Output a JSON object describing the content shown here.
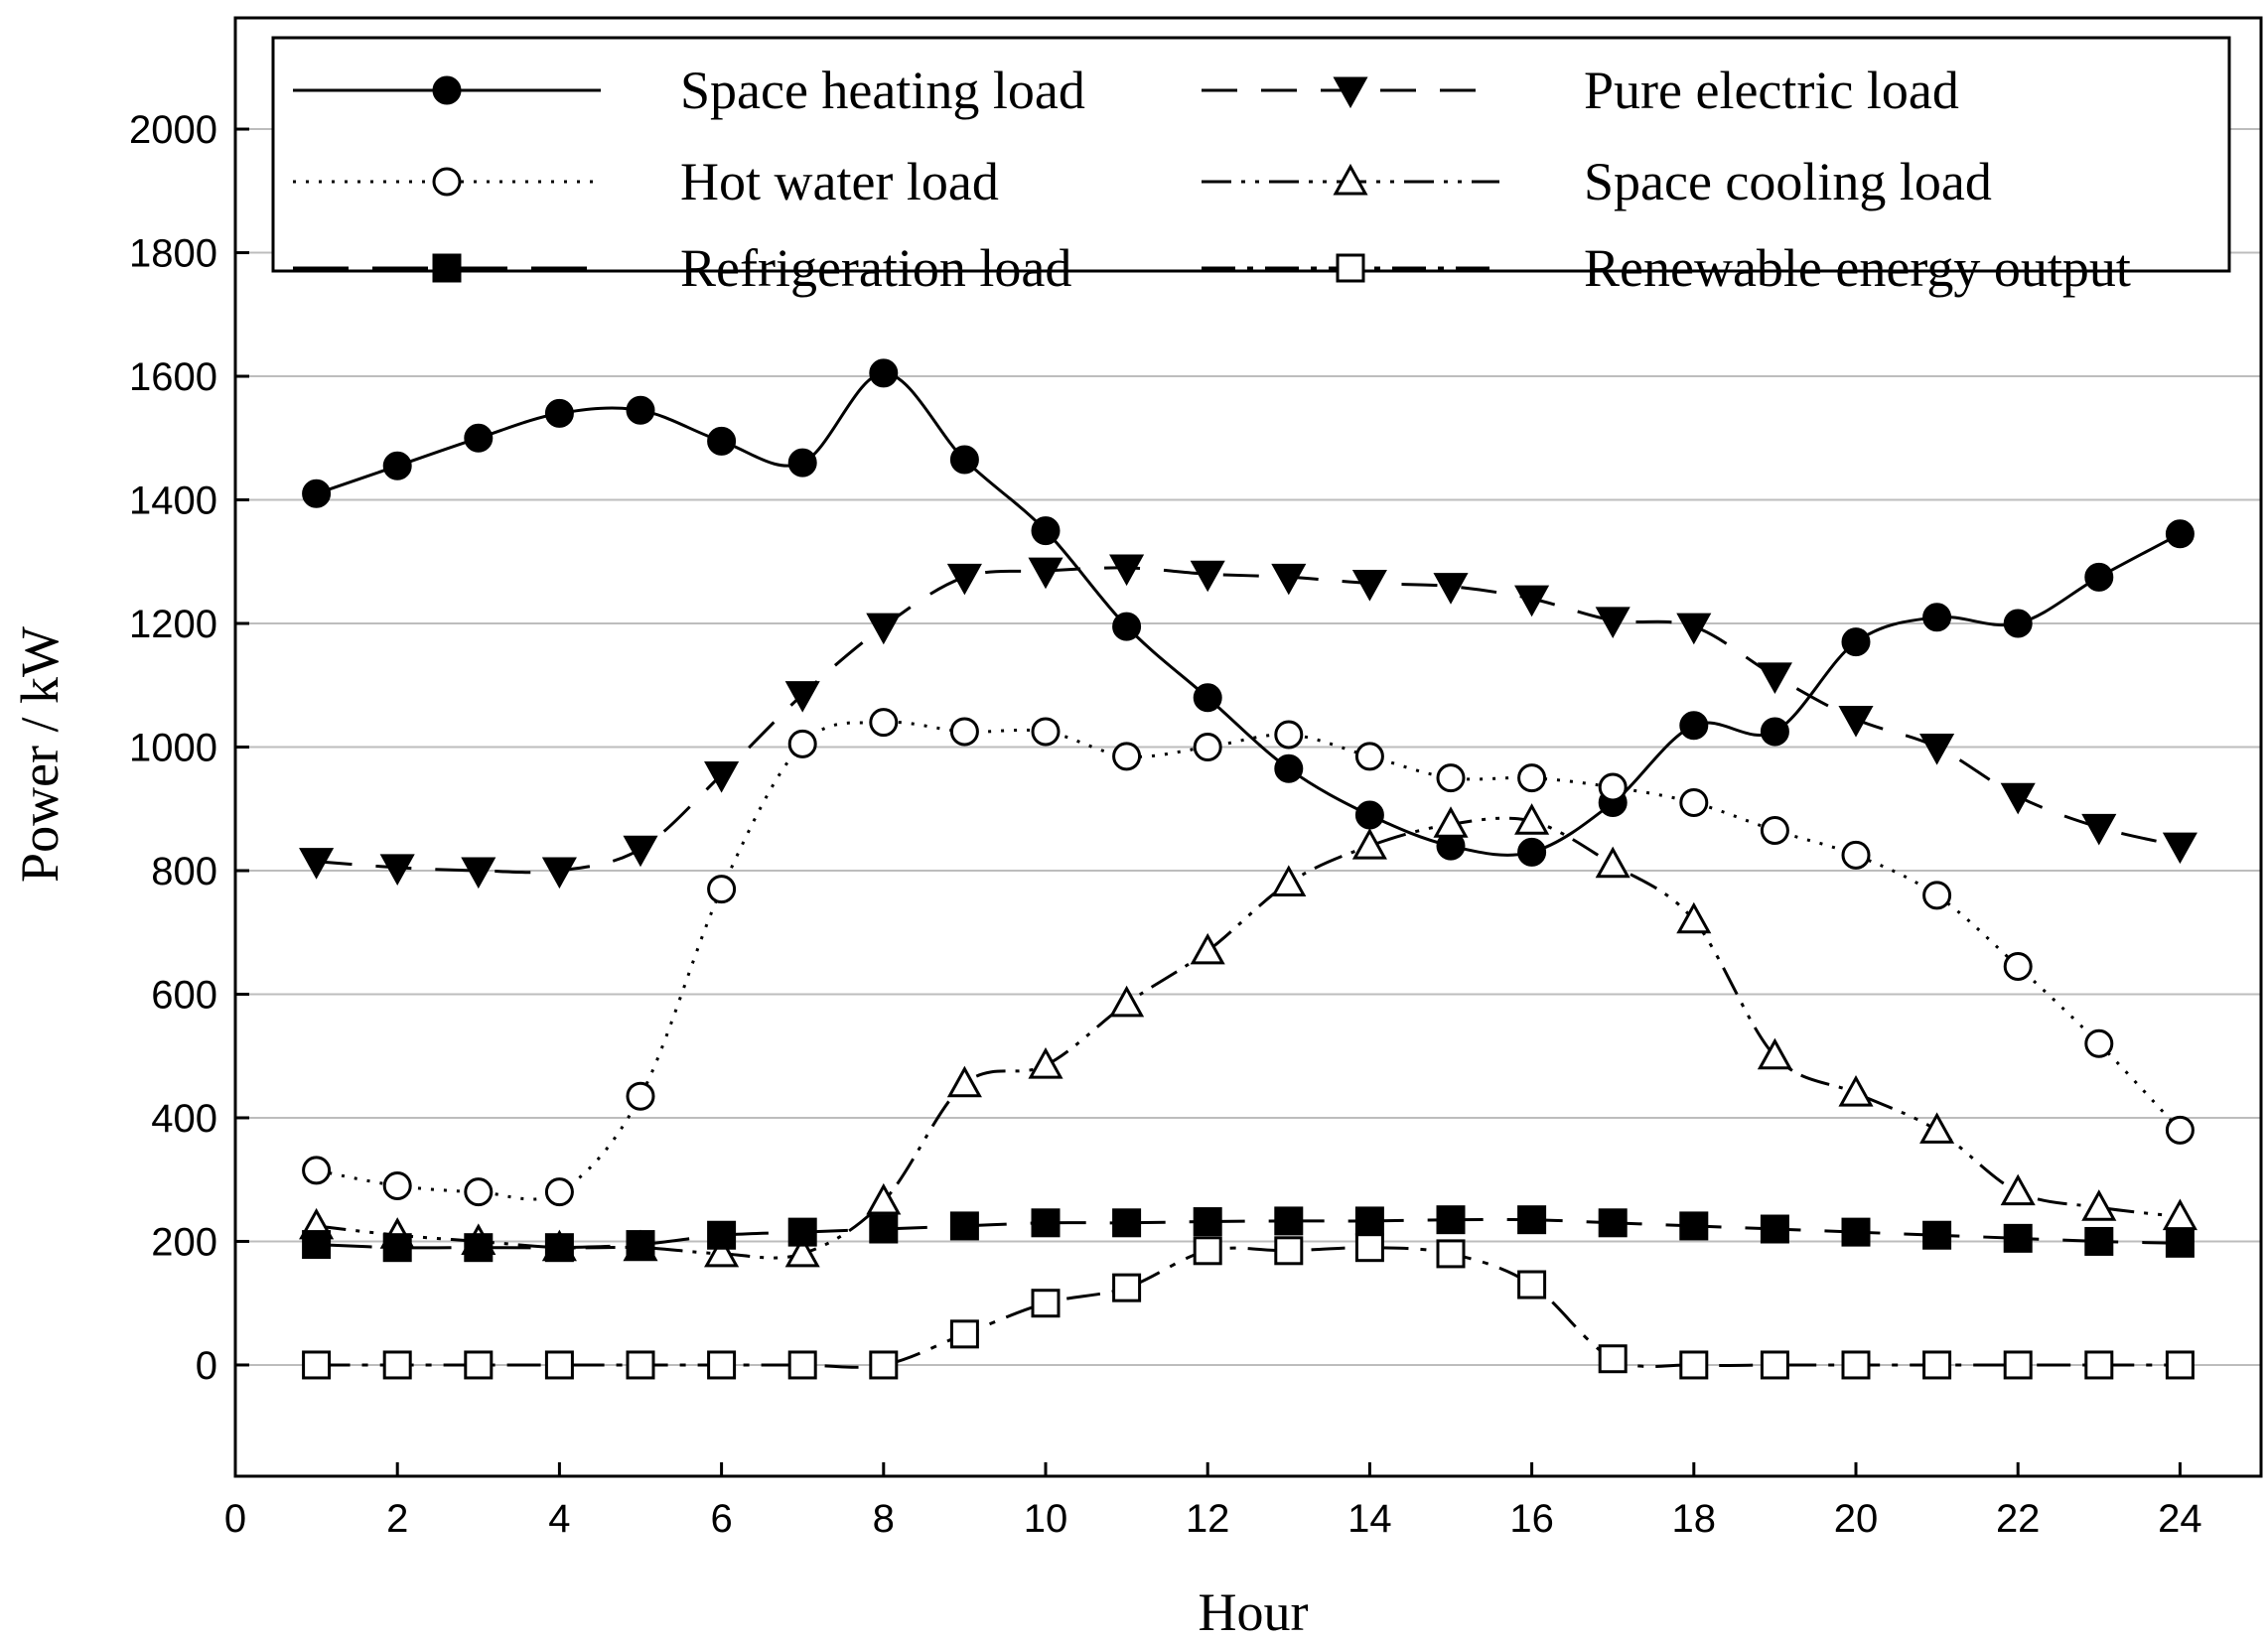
{
  "chart_data": {
    "type": "line",
    "title": "",
    "xlabel": "Hour",
    "ylabel": "Power / kW",
    "xlim": [
      0,
      25
    ],
    "ylim": [
      -180,
      2180
    ],
    "xticks": [
      0,
      2,
      4,
      6,
      8,
      10,
      12,
      14,
      16,
      18,
      20,
      22,
      24
    ],
    "yticks": [
      0,
      200,
      400,
      600,
      800,
      1000,
      1200,
      1400,
      1600,
      1800,
      2000
    ],
    "grid": "horizontal",
    "legend_position": "top",
    "x": [
      1,
      2,
      3,
      4,
      5,
      6,
      7,
      8,
      9,
      10,
      11,
      12,
      13,
      14,
      15,
      16,
      17,
      18,
      19,
      20,
      21,
      22,
      23,
      24
    ],
    "series": [
      {
        "name": "Space heating load",
        "marker": "filled-circle",
        "dash": "solid",
        "values": [
          1410,
          1455,
          1500,
          1540,
          1545,
          1495,
          1460,
          1605,
          1465,
          1350,
          1195,
          1080,
          965,
          890,
          840,
          830,
          910,
          1035,
          1025,
          1170,
          1210,
          1200,
          1275,
          1345
        ]
      },
      {
        "name": "Pure electric load",
        "marker": "filled-triangle-down",
        "dash": "dash",
        "values": [
          815,
          805,
          800,
          800,
          835,
          955,
          1085,
          1195,
          1275,
          1285,
          1290,
          1280,
          1275,
          1265,
          1260,
          1240,
          1205,
          1195,
          1115,
          1045,
          1000,
          920,
          870,
          840
        ]
      },
      {
        "name": "Hot water load",
        "marker": "open-circle",
        "dash": "dot",
        "values": [
          315,
          290,
          280,
          280,
          435,
          770,
          1005,
          1040,
          1025,
          1025,
          985,
          1000,
          1020,
          985,
          950,
          950,
          935,
          910,
          865,
          825,
          760,
          645,
          520,
          380
        ]
      },
      {
        "name": "Space cooling load",
        "marker": "open-triangle-up",
        "dash": "dash-dot-dot",
        "values": [
          225,
          210,
          200,
          190,
          190,
          180,
          180,
          265,
          455,
          485,
          585,
          670,
          780,
          840,
          875,
          880,
          810,
          720,
          500,
          440,
          380,
          280,
          255,
          240
        ]
      },
      {
        "name": "Refrigeration load",
        "marker": "filled-square",
        "dash": "long-dash",
        "values": [
          195,
          190,
          190,
          190,
          195,
          210,
          215,
          220,
          225,
          230,
          230,
          232,
          233,
          233,
          235,
          235,
          230,
          225,
          220,
          215,
          210,
          205,
          200,
          197
        ]
      },
      {
        "name": "Renewable energy output",
        "marker": "open-square",
        "dash": "dash-dot",
        "values": [
          0,
          0,
          0,
          0,
          0,
          0,
          0,
          0,
          50,
          100,
          125,
          185,
          185,
          190,
          180,
          130,
          10,
          0,
          0,
          0,
          0,
          0,
          0,
          0
        ]
      }
    ]
  }
}
